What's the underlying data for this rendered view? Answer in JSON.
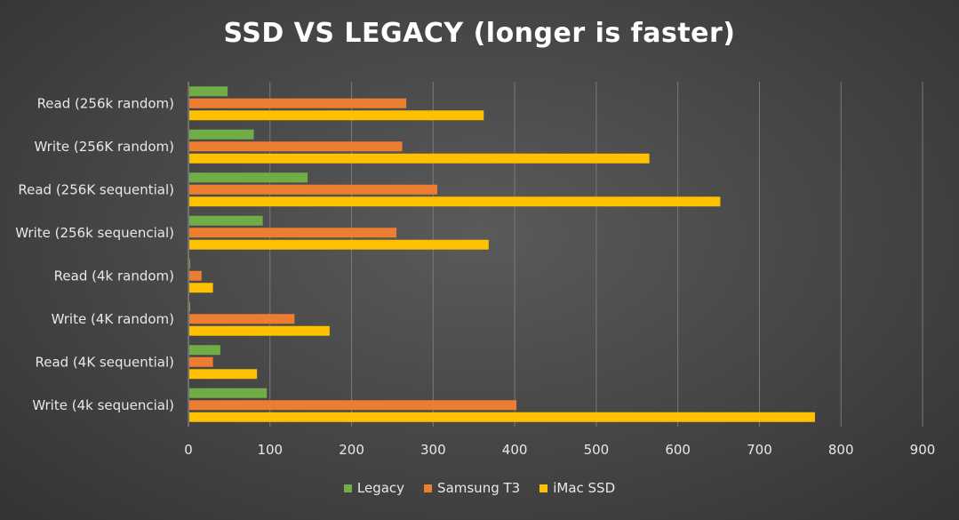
{
  "chart_data": {
    "type": "bar",
    "orientation": "horizontal",
    "title": "SSD VS LEGACY (longer is faster)",
    "xlabel": "",
    "ylabel": "",
    "xlim": [
      0,
      900
    ],
    "x_ticks": [
      "0",
      "100",
      "200",
      "300",
      "400",
      "500",
      "600",
      "700",
      "800",
      "900"
    ],
    "grid": "vertical",
    "legend_position": "bottom",
    "categories": [
      "Read (256k random)",
      "Write (256K random)",
      "Read (256K sequential)",
      "Write (256k sequencial)",
      "Read (4k random)",
      "Write (4K random)",
      "Read (4K sequential)",
      "Write (4k sequencial)"
    ],
    "series": [
      {
        "name": "Legacy",
        "color": "#70ad47",
        "values": [
          47,
          79,
          145,
          90,
          1,
          1,
          38,
          95
        ]
      },
      {
        "name": "Samsung T3",
        "color": "#ed7d31",
        "values": [
          266,
          261,
          304,
          254,
          15,
          129,
          29,
          401
        ]
      },
      {
        "name": "iMac SSD",
        "color": "#ffc000",
        "values": [
          361,
          564,
          651,
          367,
          29,
          172,
          83,
          767
        ]
      }
    ]
  }
}
